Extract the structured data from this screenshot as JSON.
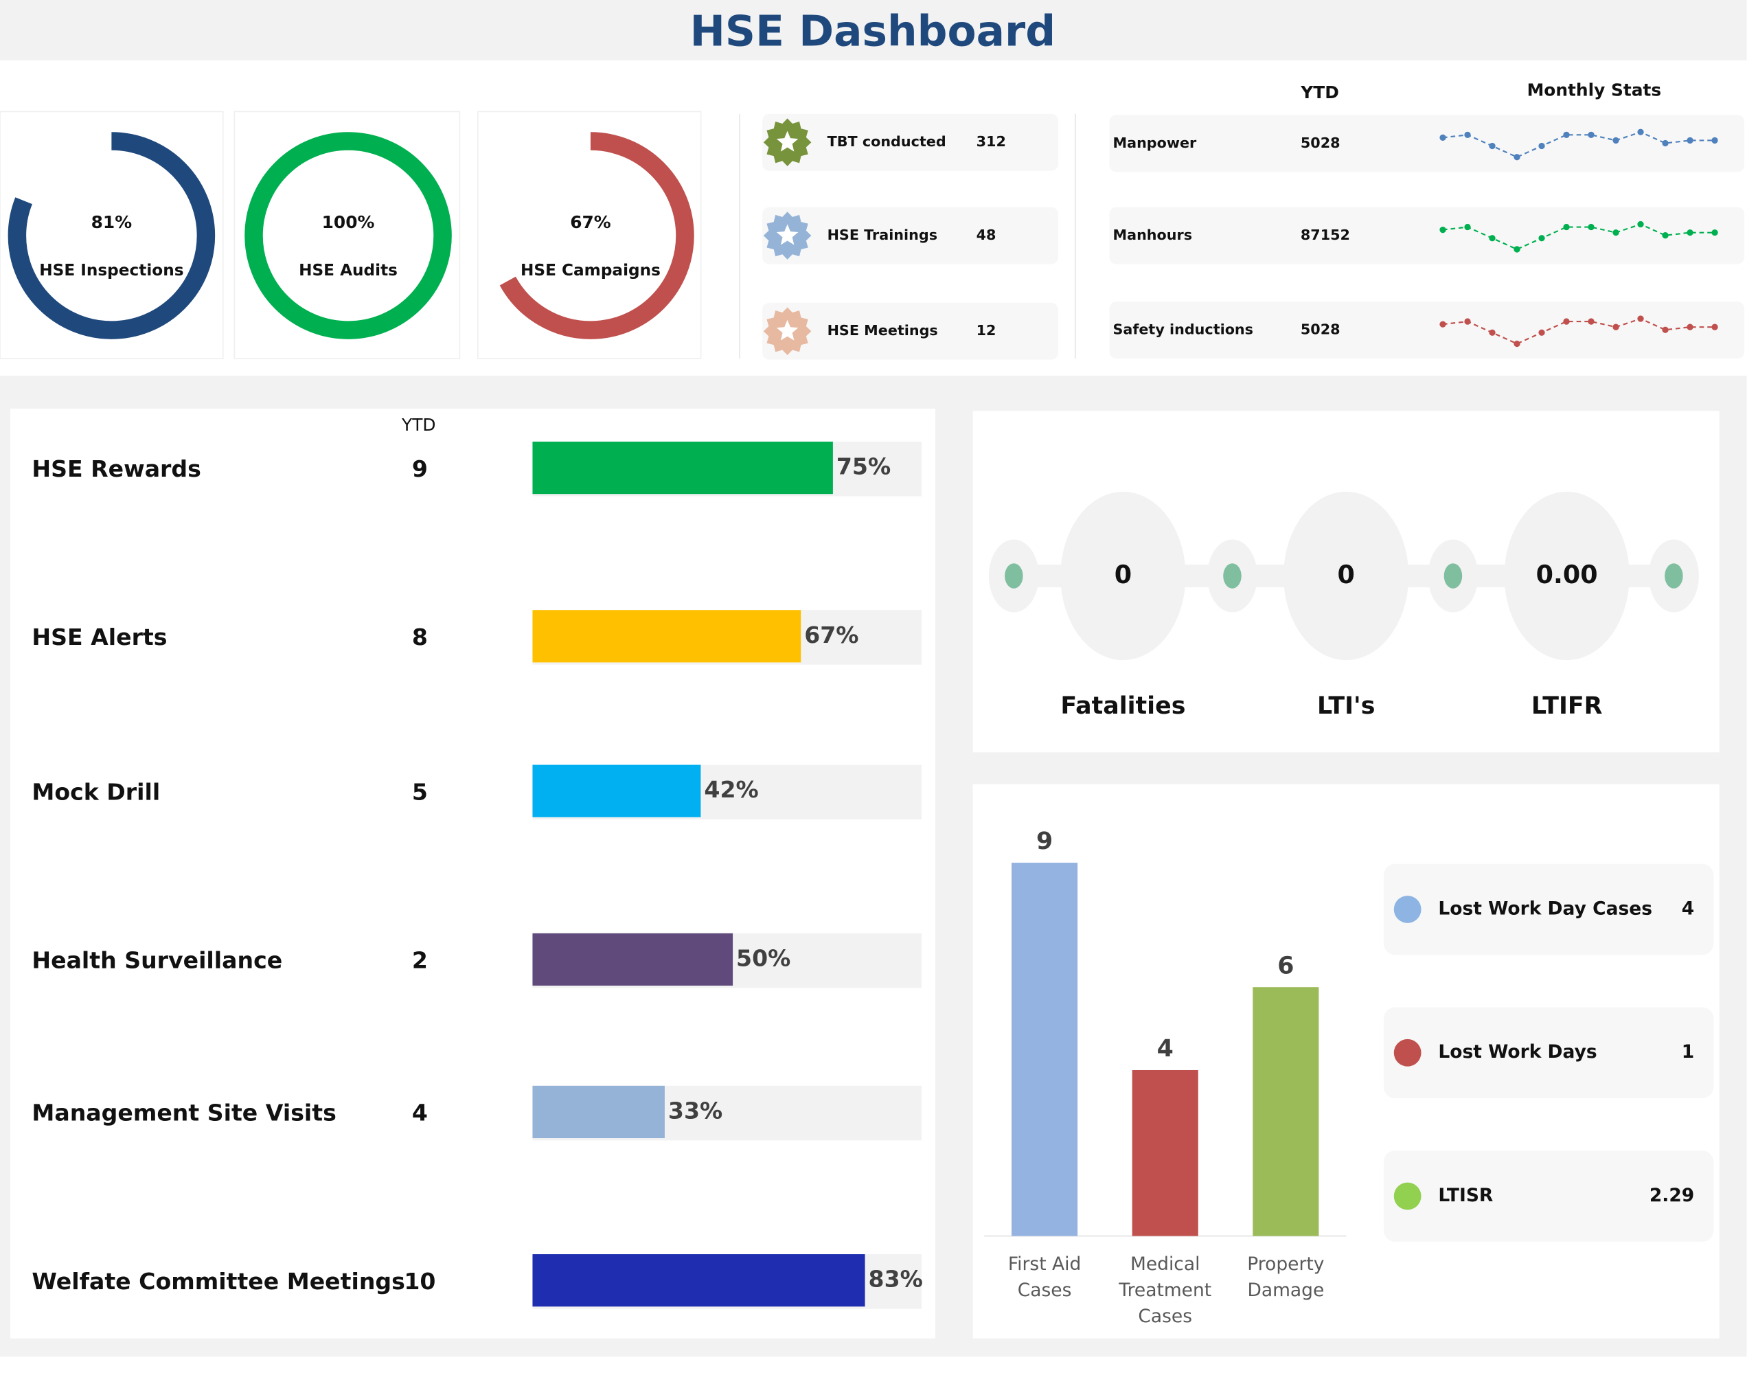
{
  "title": "HSE Dashboard",
  "gauges": [
    {
      "value": 81,
      "value_label": "81%",
      "label": "HSE Inspections",
      "color": "#1f497d"
    },
    {
      "value": 100,
      "value_label": "100%",
      "label": "HSE Audits",
      "color": "#00b050"
    },
    {
      "value": 67,
      "value_label": "67%",
      "label": "HSE Campaigns",
      "color": "#c0504d"
    }
  ],
  "trainings": [
    {
      "name": "TBT conducted",
      "value": 312,
      "color": "#77933c"
    },
    {
      "name": "HSE Trainings",
      "value": 48,
      "color": "#95b3d7"
    },
    {
      "name": "HSE Meetings",
      "value": 12,
      "color": "#e6b9a0"
    }
  ],
  "monthly": {
    "ytd_header": "YTD",
    "stats_header": "Monthly Stats",
    "rows": [
      {
        "name": "Manpower",
        "ytd": 5028,
        "color": "#4f81bd",
        "values": [
          8,
          9,
          5,
          1,
          5,
          9,
          9,
          7,
          10,
          6,
          7,
          7
        ]
      },
      {
        "name": "Manhours",
        "ytd": 87152,
        "color": "#00b050",
        "values": [
          8,
          9,
          5,
          1,
          5,
          9,
          9,
          7,
          10,
          6,
          7,
          7
        ]
      },
      {
        "name": "Safety inductions",
        "ytd": 5028,
        "color": "#c0504d",
        "values": [
          8,
          9,
          5,
          1,
          5,
          9,
          9,
          7,
          10,
          6,
          7,
          7
        ]
      }
    ]
  },
  "activities": {
    "ytd_header": "YTD",
    "rows": [
      {
        "name": "HSE Rewards",
        "ytd": 9,
        "percent": 75,
        "percent_label": "75%",
        "color": "#00b050"
      },
      {
        "name": "HSE Alerts",
        "ytd": 8,
        "percent": 67,
        "percent_label": "67%",
        "color": "#ffc000"
      },
      {
        "name": "Mock Drill",
        "ytd": 5,
        "percent": 42,
        "percent_label": "42%",
        "color": "#00b0f0"
      },
      {
        "name": "Health Surveillance",
        "ytd": 2,
        "percent": 50,
        "percent_label": "50%",
        "color": "#604a7b"
      },
      {
        "name": "Management Site Visits",
        "ytd": 4,
        "percent": 33,
        "percent_label": "33%",
        "color": "#95b3d7"
      },
      {
        "name": "Welfate Committee Meetings",
        "ytd": 10,
        "percent": 83,
        "percent_label": "83%",
        "color": "#1f2db0"
      }
    ]
  },
  "indicators": [
    {
      "name": "Fatalities",
      "value": 0
    },
    {
      "name": "LTI's",
      "value": 0
    },
    {
      "name": "LTIFR",
      "value": 0,
      "value_label": "0.00"
    }
  ],
  "chart_data": {
    "type": "bar",
    "categories": [
      "First Aid Cases",
      "Medical Treatment Cases",
      "Property Damage"
    ],
    "values": [
      9,
      4,
      6
    ],
    "colors": [
      "#95b3e0",
      "#c0504d",
      "#9bbb59"
    ]
  },
  "legend": [
    {
      "name": "Lost Work Day Cases",
      "value": 4,
      "color": "#8db4e2"
    },
    {
      "name": "Lost Work Days",
      "value": 1,
      "color": "#c0504d"
    },
    {
      "name": "LTISR",
      "value": 2.29,
      "color": "#92d050"
    }
  ]
}
